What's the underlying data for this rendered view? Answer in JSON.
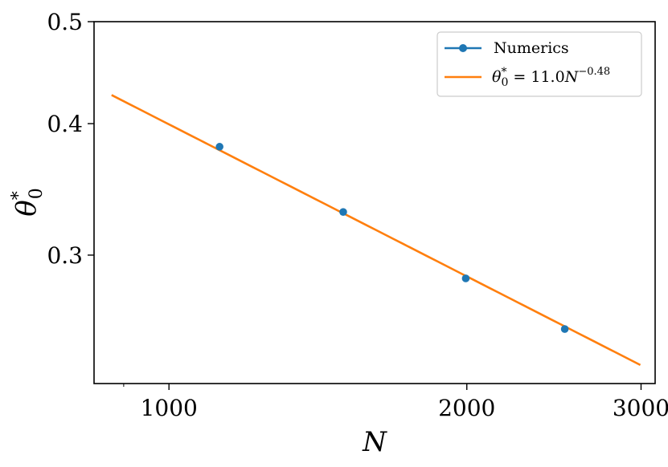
{
  "chart_data": {
    "type": "line",
    "xscale": "log",
    "yscale": "log",
    "xlim": [
      840,
      3100
    ],
    "ylim": [
      0.2265,
      0.5
    ],
    "x_ticks": [
      1000,
      2000,
      3000
    ],
    "x_tick_labels": [
      "1000",
      "2000",
      "3000"
    ],
    "x_minor_ticks": [
      900
    ],
    "y_ticks": [
      0.3,
      0.4,
      0.5
    ],
    "y_tick_labels": [
      "0.3",
      "0.4",
      "0.5"
    ],
    "xlabel": "N",
    "ylabel_base": "θ",
    "ylabel_sup": "*",
    "ylabel_sub": "0",
    "grid": false,
    "legend_position": "top-right",
    "series": [
      {
        "name": "Numerics",
        "color": "#1f77b4",
        "marker": "circle",
        "line": "none",
        "x": [
          1125,
          1500,
          1995,
          2512
        ],
        "y": [
          0.3803,
          0.3297,
          0.2851,
          0.2552
        ]
      },
      {
        "name_parts": {
          "base": "θ",
          "sup": "*",
          "sub": "0",
          "rhs": " = 11.0",
          "rhs_var": "N",
          "rhs_exp": "−0.48"
        },
        "color": "#ff7f0e",
        "line": "solid",
        "formula": {
          "coefficient": 11.0,
          "exponent": -0.48
        },
        "x_range": [
          875,
          2995
        ]
      }
    ]
  }
}
